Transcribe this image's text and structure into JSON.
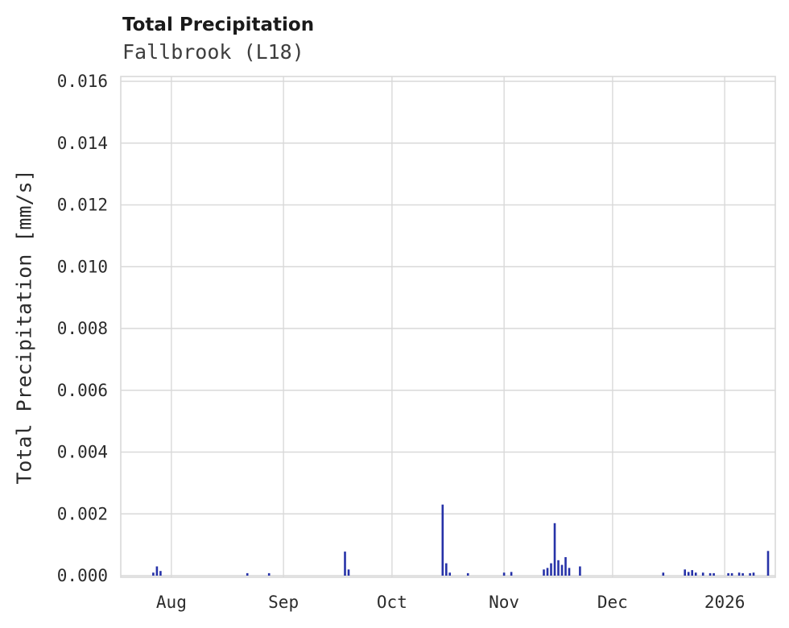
{
  "chart_data": {
    "type": "bar",
    "title": "Total Precipitation",
    "subtitle": "Fallbrook (L18)",
    "xlabel": "",
    "ylabel": "Total Precipitation [mm/s]",
    "grid": true,
    "legend": "none",
    "series_color": "#2632a8",
    "grid_color": "#d9d9d9",
    "plot_bg": "#ffffff",
    "ylim": [
      0,
      0.01616
    ],
    "ytick_labels": [
      "0.000",
      "0.002",
      "0.004",
      "0.006",
      "0.008",
      "0.010",
      "0.012",
      "0.014",
      "0.016"
    ],
    "x_domain": [
      "2025-07-18",
      "2026-01-15"
    ],
    "xticks": [
      {
        "date": "2025-08-01",
        "label": "Aug"
      },
      {
        "date": "2025-09-01",
        "label": "Sep"
      },
      {
        "date": "2025-10-01",
        "label": "Oct"
      },
      {
        "date": "2025-11-01",
        "label": "Nov"
      },
      {
        "date": "2025-12-01",
        "label": "Dec"
      },
      {
        "date": "2026-01-01",
        "label": "2026"
      }
    ],
    "points": [
      {
        "date": "2025-07-27",
        "value": 0.0001
      },
      {
        "date": "2025-07-28",
        "value": 0.0003
      },
      {
        "date": "2025-07-29",
        "value": 0.00015
      },
      {
        "date": "2025-08-22",
        "value": 8e-05
      },
      {
        "date": "2025-08-28",
        "value": 8e-05
      },
      {
        "date": "2025-09-18",
        "value": 0.00078
      },
      {
        "date": "2025-09-19",
        "value": 0.0002
      },
      {
        "date": "2025-10-15",
        "value": 0.0023
      },
      {
        "date": "2025-10-16",
        "value": 0.0004
      },
      {
        "date": "2025-10-17",
        "value": 0.0001
      },
      {
        "date": "2025-10-22",
        "value": 8e-05
      },
      {
        "date": "2025-11-01",
        "value": 0.0001
      },
      {
        "date": "2025-11-03",
        "value": 0.00012
      },
      {
        "date": "2025-11-12",
        "value": 0.0002
      },
      {
        "date": "2025-11-13",
        "value": 0.00025
      },
      {
        "date": "2025-11-14",
        "value": 0.0004
      },
      {
        "date": "2025-11-15",
        "value": 0.0017
      },
      {
        "date": "2025-11-16",
        "value": 0.0005
      },
      {
        "date": "2025-11-17",
        "value": 0.00035
      },
      {
        "date": "2025-11-18",
        "value": 0.0006
      },
      {
        "date": "2025-11-19",
        "value": 0.00025
      },
      {
        "date": "2025-11-22",
        "value": 0.0003
      },
      {
        "date": "2025-12-15",
        "value": 0.0001
      },
      {
        "date": "2025-12-21",
        "value": 0.0002
      },
      {
        "date": "2025-12-22",
        "value": 0.00012
      },
      {
        "date": "2025-12-23",
        "value": 0.00018
      },
      {
        "date": "2025-12-24",
        "value": 0.0001
      },
      {
        "date": "2025-12-26",
        "value": 0.0001
      },
      {
        "date": "2025-12-28",
        "value": 8e-05
      },
      {
        "date": "2025-12-29",
        "value": 8e-05
      },
      {
        "date": "2026-01-02",
        "value": 8e-05
      },
      {
        "date": "2026-01-03",
        "value": 8e-05
      },
      {
        "date": "2026-01-05",
        "value": 0.0001
      },
      {
        "date": "2026-01-06",
        "value": 8e-05
      },
      {
        "date": "2026-01-08",
        "value": 8e-05
      },
      {
        "date": "2026-01-09",
        "value": 0.0001
      },
      {
        "date": "2026-01-13",
        "value": 0.0008
      }
    ]
  }
}
